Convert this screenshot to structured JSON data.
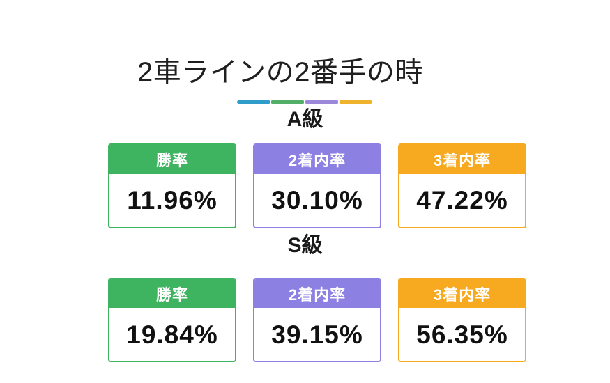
{
  "title": "2車ラインの2番手の時",
  "colors": {
    "green": "#3eb360",
    "purple": "#8c80e2",
    "orange": "#f7a920",
    "divider_blue": "#2f9cc9",
    "divider_green": "#52af68",
    "divider_purple": "#9c88d9",
    "divider_yellow": "#eeb22c",
    "header_text": "#ffffff",
    "value_text": "#111111"
  },
  "sections": [
    {
      "label": "A級",
      "cards": [
        {
          "label": "勝率",
          "value": "11.96%",
          "color": "green"
        },
        {
          "label": "2着内率",
          "value": "30.10%",
          "color": "purple"
        },
        {
          "label": "3着内率",
          "value": "47.22%",
          "color": "orange"
        }
      ]
    },
    {
      "label": "S級",
      "cards": [
        {
          "label": "勝率",
          "value": "19.84%",
          "color": "green"
        },
        {
          "label": "2着内率",
          "value": "39.15%",
          "color": "purple"
        },
        {
          "label": "3着内率",
          "value": "56.35%",
          "color": "orange"
        }
      ]
    }
  ],
  "chart_data": {
    "type": "table",
    "title": "2車ラインの2番手の時",
    "unit": "%",
    "columns": [
      "勝率",
      "2着内率",
      "3着内率"
    ],
    "groups": [
      {
        "name": "A級",
        "values": [
          11.96,
          30.1,
          47.22
        ]
      },
      {
        "name": "S級",
        "values": [
          19.84,
          39.15,
          56.35
        ]
      }
    ],
    "legend_position": "none",
    "grid": false
  }
}
